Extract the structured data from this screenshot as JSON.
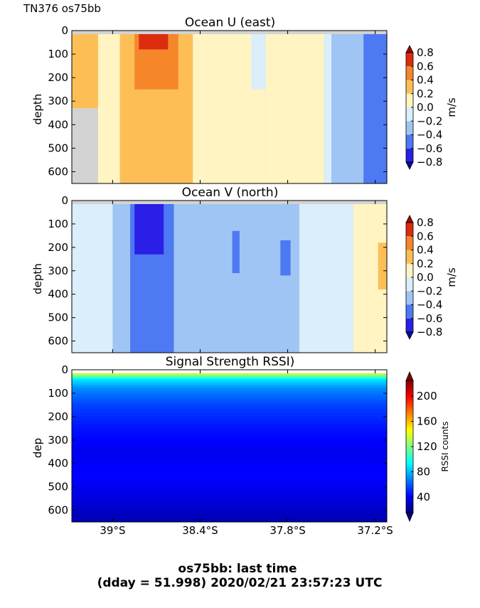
{
  "page": {
    "corner_label": "TN376 os75bb",
    "footer_line1": "os75bb: last time",
    "footer_line2": "(dday = 51.998) 2020/02/21 23:57:23 UTC"
  },
  "chart_data": [
    {
      "type": "heatmap",
      "title": "Ocean U (east)",
      "ylabel": "depth",
      "colorbar_label": "m/s",
      "y_ticks": [
        "0",
        "100",
        "200",
        "300",
        "400",
        "500",
        "600"
      ],
      "y_tick_values": [
        0,
        100,
        200,
        300,
        400,
        500,
        600
      ],
      "x_tick_values": [
        -39.0,
        -38.4,
        -37.8,
        -37.2
      ],
      "ylim": [
        650,
        0
      ],
      "xlim": [
        -39.28,
        -37.12
      ],
      "clim": [
        -0.8,
        0.8
      ],
      "colorbar_ticks": [
        "0.8",
        "0.6",
        "0.4",
        "0.2",
        "0.0",
        "−0.2",
        "−0.4",
        "−0.6",
        "−0.8"
      ],
      "colorbar_tick_values": [
        0.8,
        0.6,
        0.4,
        0.2,
        0.0,
        -0.2,
        -0.4,
        -0.6,
        -0.8
      ],
      "colorbar_levels": [
        {
          "range": [
            -0.8,
            -0.6
          ],
          "color": "#2b1ee6"
        },
        {
          "range": [
            -0.6,
            -0.4
          ],
          "color": "#4d79f2"
        },
        {
          "range": [
            -0.4,
            -0.2
          ],
          "color": "#9fc5f5"
        },
        {
          "range": [
            -0.2,
            0.0
          ],
          "color": "#daeefb"
        },
        {
          "range": [
            0.0,
            0.2
          ],
          "color": "#fff4c2"
        },
        {
          "range": [
            0.2,
            0.4
          ],
          "color": "#fdbf55"
        },
        {
          "range": [
            0.4,
            0.6
          ],
          "color": "#f5862a"
        },
        {
          "range": [
            0.6,
            0.8
          ],
          "color": "#dc2c0e"
        }
      ],
      "colorbar_extend_colors": {
        "over": "#a40000",
        "under": "#0b0b99"
      },
      "no_data_color": "#d3d3d3",
      "field_bands": [
        {
          "x": [
            -39.28,
            -39.1
          ],
          "depth": [
            15,
            330
          ],
          "value": 0.3
        },
        {
          "x": [
            -39.1,
            -38.95
          ],
          "depth": [
            15,
            650
          ],
          "value": 0.1
        },
        {
          "x": [
            -38.95,
            -38.45
          ],
          "depth": [
            15,
            650
          ],
          "value": 0.3
        },
        {
          "x": [
            -38.85,
            -38.55
          ],
          "depth": [
            15,
            250
          ],
          "value": 0.5
        },
        {
          "x": [
            -38.82,
            -38.62
          ],
          "depth": [
            15,
            80
          ],
          "value": 0.7
        },
        {
          "x": [
            -38.45,
            -37.95
          ],
          "depth": [
            15,
            650
          ],
          "value": 0.1
        },
        {
          "x": [
            -38.05,
            -37.95
          ],
          "depth": [
            15,
            250
          ],
          "value": -0.1
        },
        {
          "x": [
            -37.95,
            -37.55
          ],
          "depth": [
            15,
            650
          ],
          "value": 0.1
        },
        {
          "x": [
            -37.55,
            -37.5
          ],
          "depth": [
            15,
            650
          ],
          "value": -0.1
        },
        {
          "x": [
            -37.5,
            -37.28
          ],
          "depth": [
            15,
            650
          ],
          "value": -0.3
        },
        {
          "x": [
            -37.28,
            -37.12
          ],
          "depth": [
            15,
            650
          ],
          "value": -0.5
        }
      ]
    },
    {
      "type": "heatmap",
      "title": "Ocean V (north)",
      "ylabel": "depth",
      "colorbar_label": "m/s",
      "y_ticks": [
        "0",
        "100",
        "200",
        "300",
        "400",
        "500",
        "600"
      ],
      "y_tick_values": [
        0,
        100,
        200,
        300,
        400,
        500,
        600
      ],
      "x_tick_values": [
        -39.0,
        -38.4,
        -37.8,
        -37.2
      ],
      "ylim": [
        650,
        0
      ],
      "xlim": [
        -39.28,
        -37.12
      ],
      "clim": [
        -0.8,
        0.8
      ],
      "colorbar_ticks": [
        "0.8",
        "0.6",
        "0.4",
        "0.2",
        "0.0",
        "−0.2",
        "−0.4",
        "−0.6",
        "−0.8"
      ],
      "colorbar_tick_values": [
        0.8,
        0.6,
        0.4,
        0.2,
        0.0,
        -0.2,
        -0.4,
        -0.6,
        -0.8
      ],
      "no_data_color": "#d3d3d3",
      "field_bands": [
        {
          "x": [
            -39.28,
            -39.0
          ],
          "depth": [
            15,
            650
          ],
          "value": -0.1
        },
        {
          "x": [
            -39.0,
            -38.88
          ],
          "depth": [
            15,
            650
          ],
          "value": -0.3
        },
        {
          "x": [
            -38.88,
            -38.58
          ],
          "depth": [
            15,
            650
          ],
          "value": -0.5
        },
        {
          "x": [
            -38.85,
            -38.65
          ],
          "depth": [
            15,
            230
          ],
          "value": -0.7
        },
        {
          "x": [
            -38.58,
            -37.72
          ],
          "depth": [
            15,
            650
          ],
          "value": -0.3
        },
        {
          "x": [
            -38.18,
            -38.13
          ],
          "depth": [
            130,
            310
          ],
          "value": -0.5
        },
        {
          "x": [
            -37.85,
            -37.78
          ],
          "depth": [
            170,
            320
          ],
          "value": -0.5
        },
        {
          "x": [
            -37.72,
            -37.35
          ],
          "depth": [
            15,
            650
          ],
          "value": -0.1
        },
        {
          "x": [
            -37.35,
            -37.12
          ],
          "depth": [
            15,
            650
          ],
          "value": 0.1
        },
        {
          "x": [
            -37.18,
            -37.12
          ],
          "depth": [
            180,
            380
          ],
          "value": 0.3
        }
      ]
    },
    {
      "type": "heatmap",
      "title": "Signal Strength RSSI)",
      "ylabel": "dep",
      "colorbar_label": "RSSI counts",
      "y_ticks": [
        "0",
        "100",
        "200",
        "300",
        "400",
        "500",
        "600"
      ],
      "y_tick_values": [
        0,
        100,
        200,
        300,
        400,
        500,
        600
      ],
      "x_ticks": [
        "39°S",
        "38.4°S",
        "37.8°S",
        "37.2°S"
      ],
      "x_tick_values": [
        -39.0,
        -38.4,
        -37.8,
        -37.2
      ],
      "ylim": [
        650,
        0
      ],
      "xlim": [
        -39.28,
        -37.12
      ],
      "clim": [
        15,
        225
      ],
      "colorbar_ticks": [
        "200",
        "160",
        "120",
        "80",
        "40"
      ],
      "colorbar_tick_values": [
        200,
        160,
        120,
        80,
        40
      ],
      "colormap": "jet",
      "depth_profile": [
        {
          "depth": 15,
          "value": 140
        },
        {
          "depth": 40,
          "value": 90
        },
        {
          "depth": 80,
          "value": 70
        },
        {
          "depth": 150,
          "value": 55
        },
        {
          "depth": 250,
          "value": 45
        },
        {
          "depth": 350,
          "value": 38
        },
        {
          "depth": 450,
          "value": 42
        },
        {
          "depth": 550,
          "value": 35
        },
        {
          "depth": 650,
          "value": 25
        }
      ]
    }
  ]
}
